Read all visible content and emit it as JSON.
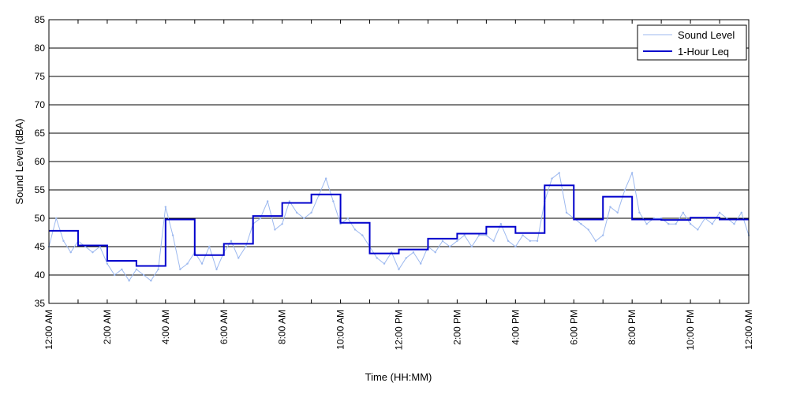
{
  "chart_data": {
    "type": "line",
    "title": "",
    "xlabel": "Time (HH:MM)",
    "ylabel": "Sound Level (dBA)",
    "ylim": [
      35,
      85
    ],
    "xlim_hours": [
      0,
      24
    ],
    "yticks": [
      35,
      40,
      45,
      50,
      55,
      60,
      65,
      70,
      75,
      80,
      85
    ],
    "xtick_labels": [
      "12:00 AM",
      "2:00 AM",
      "4:00 AM",
      "6:00 AM",
      "8:00 AM",
      "10:00 AM",
      "12:00 PM",
      "2:00 PM",
      "4:00 PM",
      "6:00 PM",
      "8:00 PM",
      "10:00 PM",
      "12:00 AM"
    ],
    "grid": "horizontal",
    "legend_position": "top-right",
    "colors": {
      "sound_level": "#9db9ef",
      "leq": "#0000cc"
    },
    "series": [
      {
        "name": "Sound Level",
        "style": "thin-line",
        "x_hours": [
          0,
          0.25,
          0.5,
          0.75,
          1,
          1.25,
          1.5,
          1.75,
          2,
          2.25,
          2.5,
          2.75,
          3,
          3.25,
          3.5,
          3.75,
          4,
          4.25,
          4.5,
          4.75,
          5,
          5.25,
          5.5,
          5.75,
          6,
          6.25,
          6.5,
          6.75,
          7,
          7.25,
          7.5,
          7.75,
          8,
          8.25,
          8.5,
          8.75,
          9,
          9.25,
          9.5,
          9.75,
          10,
          10.25,
          10.5,
          10.75,
          11,
          11.25,
          11.5,
          11.75,
          12,
          12.25,
          12.5,
          12.75,
          13,
          13.25,
          13.5,
          13.75,
          14,
          14.25,
          14.5,
          14.75,
          15,
          15.25,
          15.5,
          15.75,
          16,
          16.25,
          16.5,
          16.75,
          17,
          17.25,
          17.5,
          17.75,
          18,
          18.25,
          18.5,
          18.75,
          19,
          19.25,
          19.5,
          19.75,
          20,
          20.25,
          20.5,
          20.75,
          21,
          21.25,
          21.5,
          21.75,
          22,
          22.25,
          22.5,
          22.75,
          23,
          23.25,
          23.5,
          23.75,
          24
        ],
        "values": [
          45,
          50,
          46,
          44,
          46,
          45,
          44,
          45,
          42,
          40,
          41,
          39,
          41,
          40,
          39,
          41,
          52,
          47,
          41,
          42,
          44,
          42,
          45,
          41,
          44,
          46,
          43,
          45,
          49,
          50,
          53,
          48,
          49,
          53,
          51,
          50,
          51,
          54,
          57,
          53,
          49,
          50,
          48,
          47,
          45,
          43,
          42,
          44,
          41,
          43,
          44,
          42,
          45,
          44,
          46,
          45,
          46,
          47,
          45,
          47,
          47,
          46,
          49,
          46,
          45,
          47,
          46,
          46,
          53,
          57,
          58,
          51,
          50,
          49,
          48,
          46,
          47,
          52,
          51,
          55,
          58,
          51,
          49,
          50,
          50,
          49,
          49,
          51,
          49,
          48,
          50,
          49,
          51,
          50,
          49,
          51,
          47
        ]
      },
      {
        "name": "1-Hour Leq",
        "style": "step",
        "x_hours": [
          0,
          1,
          2,
          3,
          4,
          5,
          6,
          7,
          8,
          9,
          10,
          11,
          12,
          13,
          14,
          15,
          16,
          17,
          18,
          19,
          20,
          21,
          22,
          23,
          24
        ],
        "values": [
          47.8,
          45.2,
          42.5,
          41.6,
          49.8,
          43.5,
          45.5,
          50.4,
          52.7,
          54.2,
          49.2,
          43.8,
          44.5,
          46.4,
          47.3,
          48.5,
          47.4,
          55.8,
          49.8,
          53.8,
          49.8,
          49.7,
          50.1,
          49.8,
          49.8
        ]
      }
    ]
  }
}
